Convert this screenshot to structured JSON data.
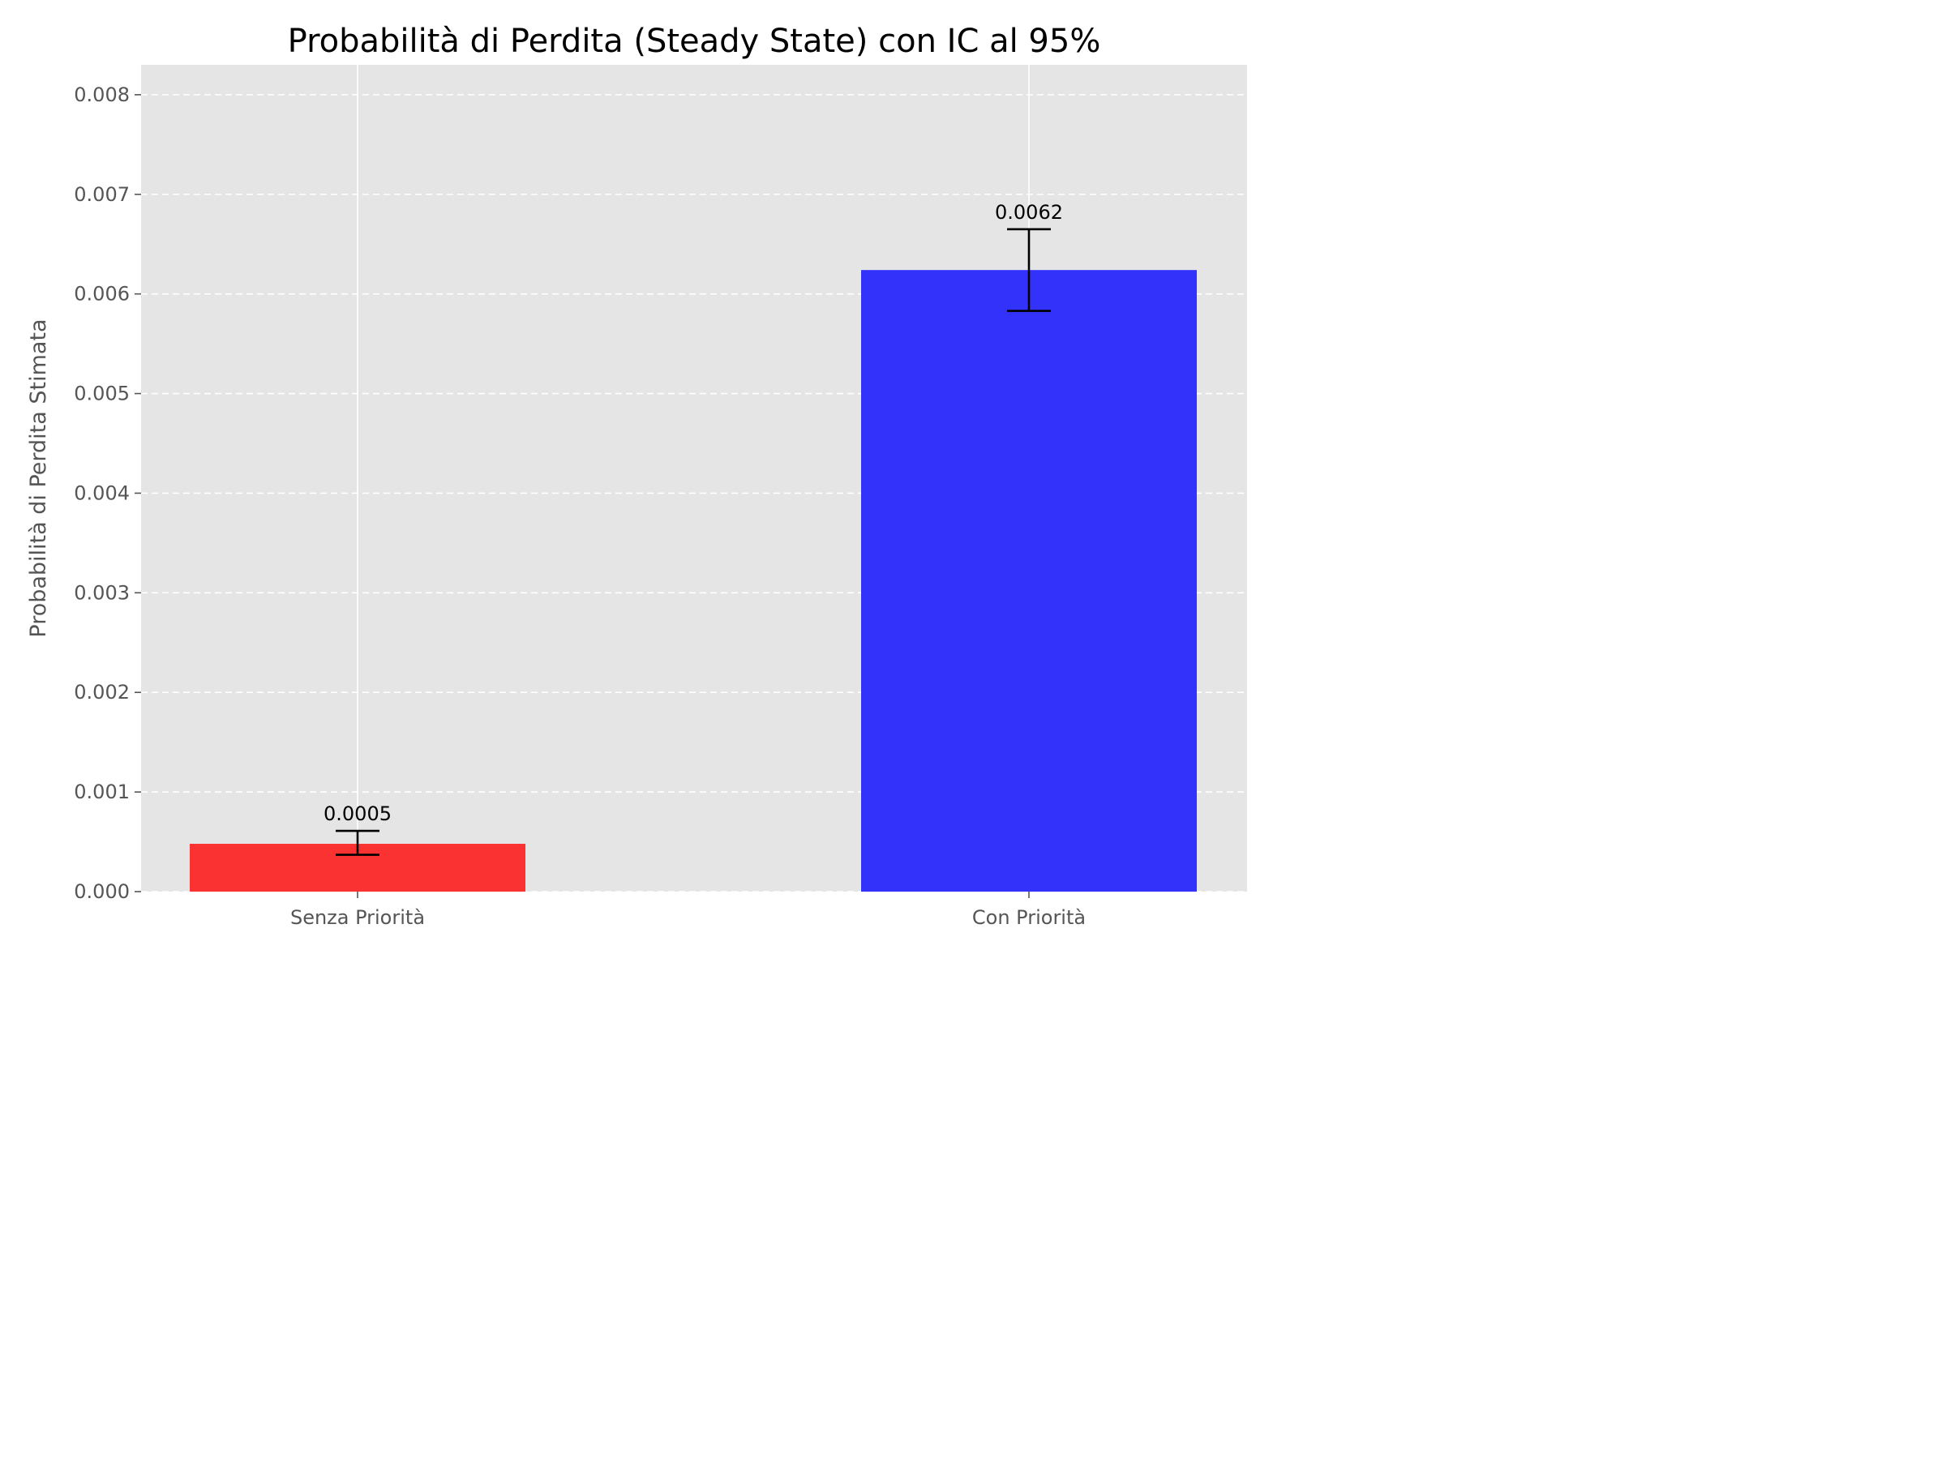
{
  "chart_data": {
    "type": "bar",
    "title": "Probabilità di Perdita (Steady State) con IC al 95%",
    "xlabel": "",
    "ylabel": "Probabilità di Perdita Stimata",
    "categories": [
      "Senza Priorità",
      "Con Priorità"
    ],
    "values": [
      0.00048,
      0.00624
    ],
    "error_low": [
      0.00037,
      0.00583
    ],
    "error_high": [
      0.00061,
      0.00665
    ],
    "data_labels": [
      "0.0005",
      "0.0062"
    ],
    "colors": [
      "#fb2e2e",
      "#2e2efb"
    ],
    "ylim": [
      0,
      0.0083
    ],
    "yticks": [
      0,
      0.001,
      0.002,
      0.003,
      0.004,
      0.005,
      0.006,
      0.007,
      0.008
    ],
    "ytick_labels": [
      "0.000",
      "0.001",
      "0.002",
      "0.003",
      "0.004",
      "0.005",
      "0.006",
      "0.007",
      "0.008"
    ],
    "grid": "y-dashed",
    "background": "#e5e5e5"
  }
}
